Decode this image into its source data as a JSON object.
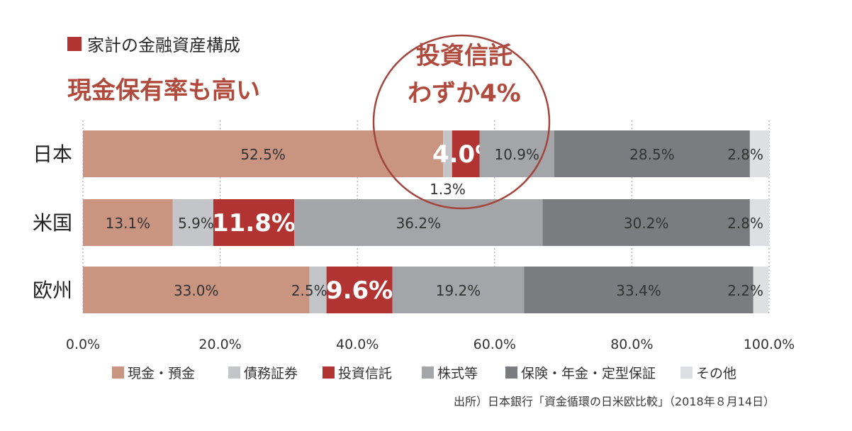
{
  "header": {
    "title": "家計の金融資産構成",
    "marker_color": "#b23432"
  },
  "subtitle": "現金保有率も高い",
  "callout": {
    "line1": "投資信託",
    "line2": "わずか4%",
    "circle_color": "#a3453d"
  },
  "source": "出所）日本銀行「資金循環の日米欧比較」（2018年８月14日）",
  "colors": {
    "text_accent": "#b04a3c",
    "highlight_text": "#ffffff"
  },
  "chart_data": {
    "type": "bar",
    "orientation": "horizontal",
    "stacked": true,
    "categories": [
      "日本",
      "米国",
      "欧州"
    ],
    "xlim": [
      0,
      100
    ],
    "x_ticks": [
      "0.0%",
      "20.0%",
      "40.0%",
      "60.0%",
      "80.0%",
      "100.0%"
    ],
    "grid": "vertical dotted",
    "legend_position": "bottom",
    "highlight_series": "投資信託",
    "series": [
      {
        "name": "現金・預金",
        "color": "#c99480",
        "values": [
          52.5,
          13.1,
          33.0
        ],
        "labels": [
          "52.5%",
          "13.1%",
          "33.0%"
        ]
      },
      {
        "name": "債務証券",
        "color": "#c4c5c8",
        "values": [
          1.3,
          5.9,
          2.5
        ],
        "labels": [
          "1.3%",
          "5.9%",
          "2.5%"
        ]
      },
      {
        "name": "投資信託",
        "color": "#b23432",
        "values": [
          4.0,
          11.8,
          9.6
        ],
        "labels": [
          "4.0%",
          "11.8%",
          "9.6%"
        ]
      },
      {
        "name": "株式等",
        "color": "#a4a5a8",
        "values": [
          10.9,
          36.2,
          19.2
        ],
        "labels": [
          "10.9%",
          "36.2%",
          "19.2%"
        ]
      },
      {
        "name": "保険・年金・定型保証",
        "color": "#7b7c7f",
        "values": [
          28.5,
          30.2,
          33.4
        ],
        "labels": [
          "28.5%",
          "30.2%",
          "33.4%"
        ]
      },
      {
        "name": "その他",
        "color": "#dedfe1",
        "values": [
          2.8,
          2.8,
          2.2
        ],
        "labels": [
          "2.8%",
          "2.8%",
          "2.2%"
        ]
      }
    ]
  }
}
